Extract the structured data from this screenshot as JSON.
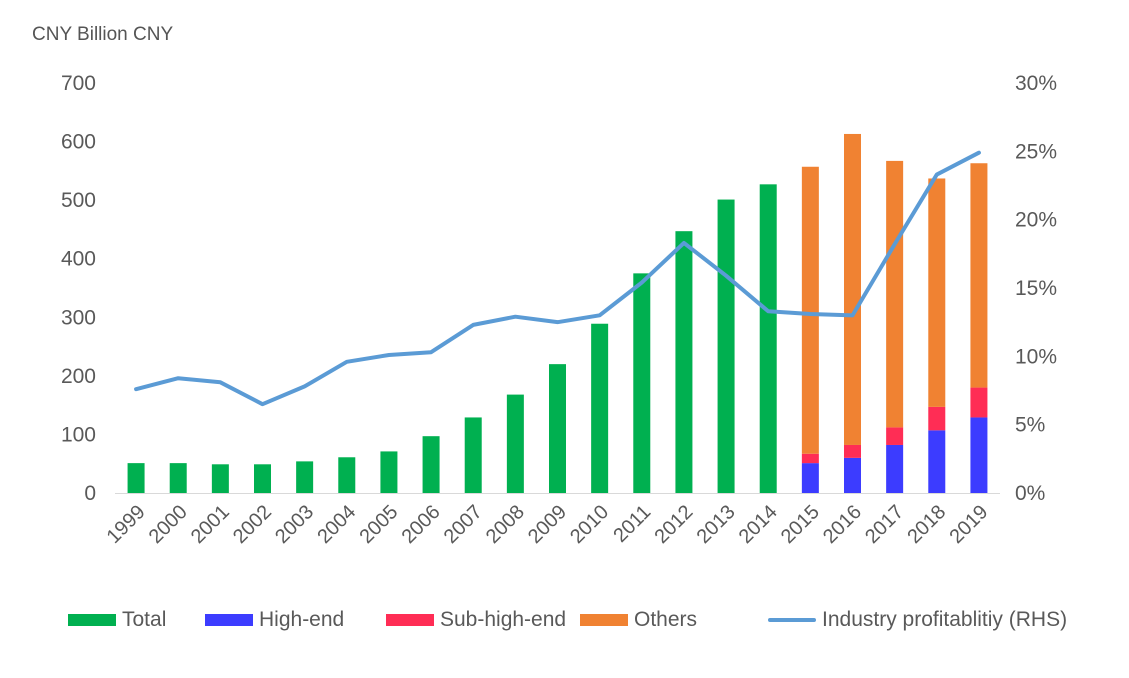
{
  "chart_data": {
    "type": "bar",
    "subtype": "stacked bar with line on secondary axis",
    "unit_label": "CNY Billion CNY",
    "categories": [
      "1999",
      "2000",
      "2001",
      "2002",
      "2003",
      "2004",
      "2005",
      "2006",
      "2007",
      "2008",
      "2009",
      "2010",
      "2011",
      "2012",
      "2013",
      "2014",
      "2015",
      "2016",
      "2017",
      "2018",
      "2019"
    ],
    "series": [
      {
        "name": "Total",
        "type": "bar",
        "axis": "left",
        "color": "#00B050",
        "values": [
          51,
          51,
          49,
          49,
          54,
          61,
          71,
          97,
          129,
          168,
          220,
          289,
          375,
          447,
          501,
          527,
          null,
          null,
          null,
          null,
          null
        ]
      },
      {
        "name": "High-end",
        "type": "bar",
        "axis": "left",
        "color": "#3C3CFF",
        "values": [
          null,
          null,
          null,
          null,
          null,
          null,
          null,
          null,
          null,
          null,
          null,
          null,
          null,
          null,
          null,
          null,
          51,
          60,
          82,
          107,
          129
        ]
      },
      {
        "name": "Sub-high-end",
        "type": "bar",
        "axis": "left",
        "color": "#FF2D55",
        "values": [
          null,
          null,
          null,
          null,
          null,
          null,
          null,
          null,
          null,
          null,
          null,
          null,
          null,
          null,
          null,
          null,
          16,
          22,
          30,
          40,
          51
        ]
      },
      {
        "name": "Others",
        "type": "bar",
        "axis": "left",
        "color": "#F08232",
        "values": [
          null,
          null,
          null,
          null,
          null,
          null,
          null,
          null,
          null,
          null,
          null,
          null,
          null,
          null,
          null,
          null,
          490,
          531,
          455,
          390,
          383
        ]
      },
      {
        "name": "Industry profitablitiy (RHS)",
        "type": "line",
        "axis": "right",
        "color": "#5B9BD5",
        "values": [
          7.6,
          8.4,
          8.1,
          6.5,
          7.8,
          9.6,
          10.1,
          10.3,
          12.3,
          12.9,
          12.5,
          13.0,
          15.4,
          18.3,
          15.9,
          13.3,
          13.1,
          13.0,
          18.2,
          23.3,
          24.9
        ]
      }
    ],
    "left_axis": {
      "min": 0,
      "max": 700,
      "ticks": [
        "0",
        "100",
        "200",
        "300",
        "400",
        "500",
        "600",
        "700"
      ]
    },
    "right_axis": {
      "min": 0,
      "max": 30,
      "ticks": [
        "0%",
        "5%",
        "10%",
        "15%",
        "20%",
        "25%",
        "30%"
      ]
    },
    "grid": false,
    "legend": "bottom"
  }
}
